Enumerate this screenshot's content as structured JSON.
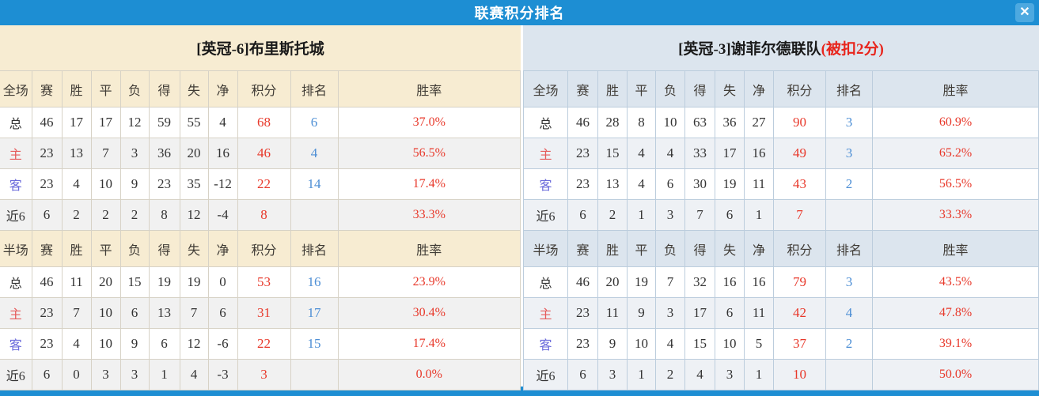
{
  "titlebar": {
    "title": "联赛积分排名",
    "close_icon": "✕"
  },
  "colors": {
    "accent_blue": "#1d8ed3",
    "close_button_blue": "#4da9e0",
    "left_header_bg": "#f7ecd2",
    "right_header_bg": "#dce5ee",
    "points_red": "#e8392b",
    "rank_blue": "#4e8fd5",
    "home_label_red": "#e55c5c",
    "away_label_blue": "#6b6bdb"
  },
  "columns": [
    "赛",
    "胜",
    "平",
    "负",
    "得",
    "失",
    "净",
    "积分",
    "排名",
    "胜率"
  ],
  "tables": [
    {
      "team_title": "[英冠-6]布里斯托城",
      "penalty_note": "",
      "sections": [
        {
          "label": "全场",
          "rows": [
            {
              "label": "总",
              "type": "total",
              "stats": [
                "46",
                "17",
                "17",
                "12",
                "59",
                "55",
                "4"
              ],
              "points": "68",
              "rank": "6",
              "win_rate": "37.0%"
            },
            {
              "label": "主",
              "type": "home",
              "stats": [
                "23",
                "13",
                "7",
                "3",
                "36",
                "20",
                "16"
              ],
              "points": "46",
              "rank": "4",
              "win_rate": "56.5%"
            },
            {
              "label": "客",
              "type": "away",
              "stats": [
                "23",
                "4",
                "10",
                "9",
                "23",
                "35",
                "-12"
              ],
              "points": "22",
              "rank": "14",
              "win_rate": "17.4%"
            },
            {
              "label": "近6",
              "type": "recent",
              "stats": [
                "6",
                "2",
                "2",
                "2",
                "8",
                "12",
                "-4"
              ],
              "points": "8",
              "rank": "",
              "win_rate": "33.3%"
            }
          ]
        },
        {
          "label": "半场",
          "rows": [
            {
              "label": "总",
              "type": "total",
              "stats": [
                "46",
                "11",
                "20",
                "15",
                "19",
                "19",
                "0"
              ],
              "points": "53",
              "rank": "16",
              "win_rate": "23.9%"
            },
            {
              "label": "主",
              "type": "home",
              "stats": [
                "23",
                "7",
                "10",
                "6",
                "13",
                "7",
                "6"
              ],
              "points": "31",
              "rank": "17",
              "win_rate": "30.4%"
            },
            {
              "label": "客",
              "type": "away",
              "stats": [
                "23",
                "4",
                "10",
                "9",
                "6",
                "12",
                "-6"
              ],
              "points": "22",
              "rank": "15",
              "win_rate": "17.4%"
            },
            {
              "label": "近6",
              "type": "recent",
              "stats": [
                "6",
                "0",
                "3",
                "3",
                "1",
                "4",
                "-3"
              ],
              "points": "3",
              "rank": "",
              "win_rate": "0.0%"
            }
          ]
        }
      ]
    },
    {
      "team_title": "[英冠-3]谢菲尔德联队",
      "penalty_note": "(被扣2分)",
      "sections": [
        {
          "label": "全场",
          "rows": [
            {
              "label": "总",
              "type": "total",
              "stats": [
                "46",
                "28",
                "8",
                "10",
                "63",
                "36",
                "27"
              ],
              "points": "90",
              "rank": "3",
              "win_rate": "60.9%"
            },
            {
              "label": "主",
              "type": "home",
              "stats": [
                "23",
                "15",
                "4",
                "4",
                "33",
                "17",
                "16"
              ],
              "points": "49",
              "rank": "3",
              "win_rate": "65.2%"
            },
            {
              "label": "客",
              "type": "away",
              "stats": [
                "23",
                "13",
                "4",
                "6",
                "30",
                "19",
                "11"
              ],
              "points": "43",
              "rank": "2",
              "win_rate": "56.5%"
            },
            {
              "label": "近6",
              "type": "recent",
              "stats": [
                "6",
                "2",
                "1",
                "3",
                "7",
                "6",
                "1"
              ],
              "points": "7",
              "rank": "",
              "win_rate": "33.3%"
            }
          ]
        },
        {
          "label": "半场",
          "rows": [
            {
              "label": "总",
              "type": "total",
              "stats": [
                "46",
                "20",
                "19",
                "7",
                "32",
                "16",
                "16"
              ],
              "points": "79",
              "rank": "3",
              "win_rate": "43.5%"
            },
            {
              "label": "主",
              "type": "home",
              "stats": [
                "23",
                "11",
                "9",
                "3",
                "17",
                "6",
                "11"
              ],
              "points": "42",
              "rank": "4",
              "win_rate": "47.8%"
            },
            {
              "label": "客",
              "type": "away",
              "stats": [
                "23",
                "9",
                "10",
                "4",
                "15",
                "10",
                "5"
              ],
              "points": "37",
              "rank": "2",
              "win_rate": "39.1%"
            },
            {
              "label": "近6",
              "type": "recent",
              "stats": [
                "6",
                "3",
                "1",
                "2",
                "4",
                "3",
                "1"
              ],
              "points": "10",
              "rank": "",
              "win_rate": "50.0%"
            }
          ]
        }
      ]
    }
  ]
}
